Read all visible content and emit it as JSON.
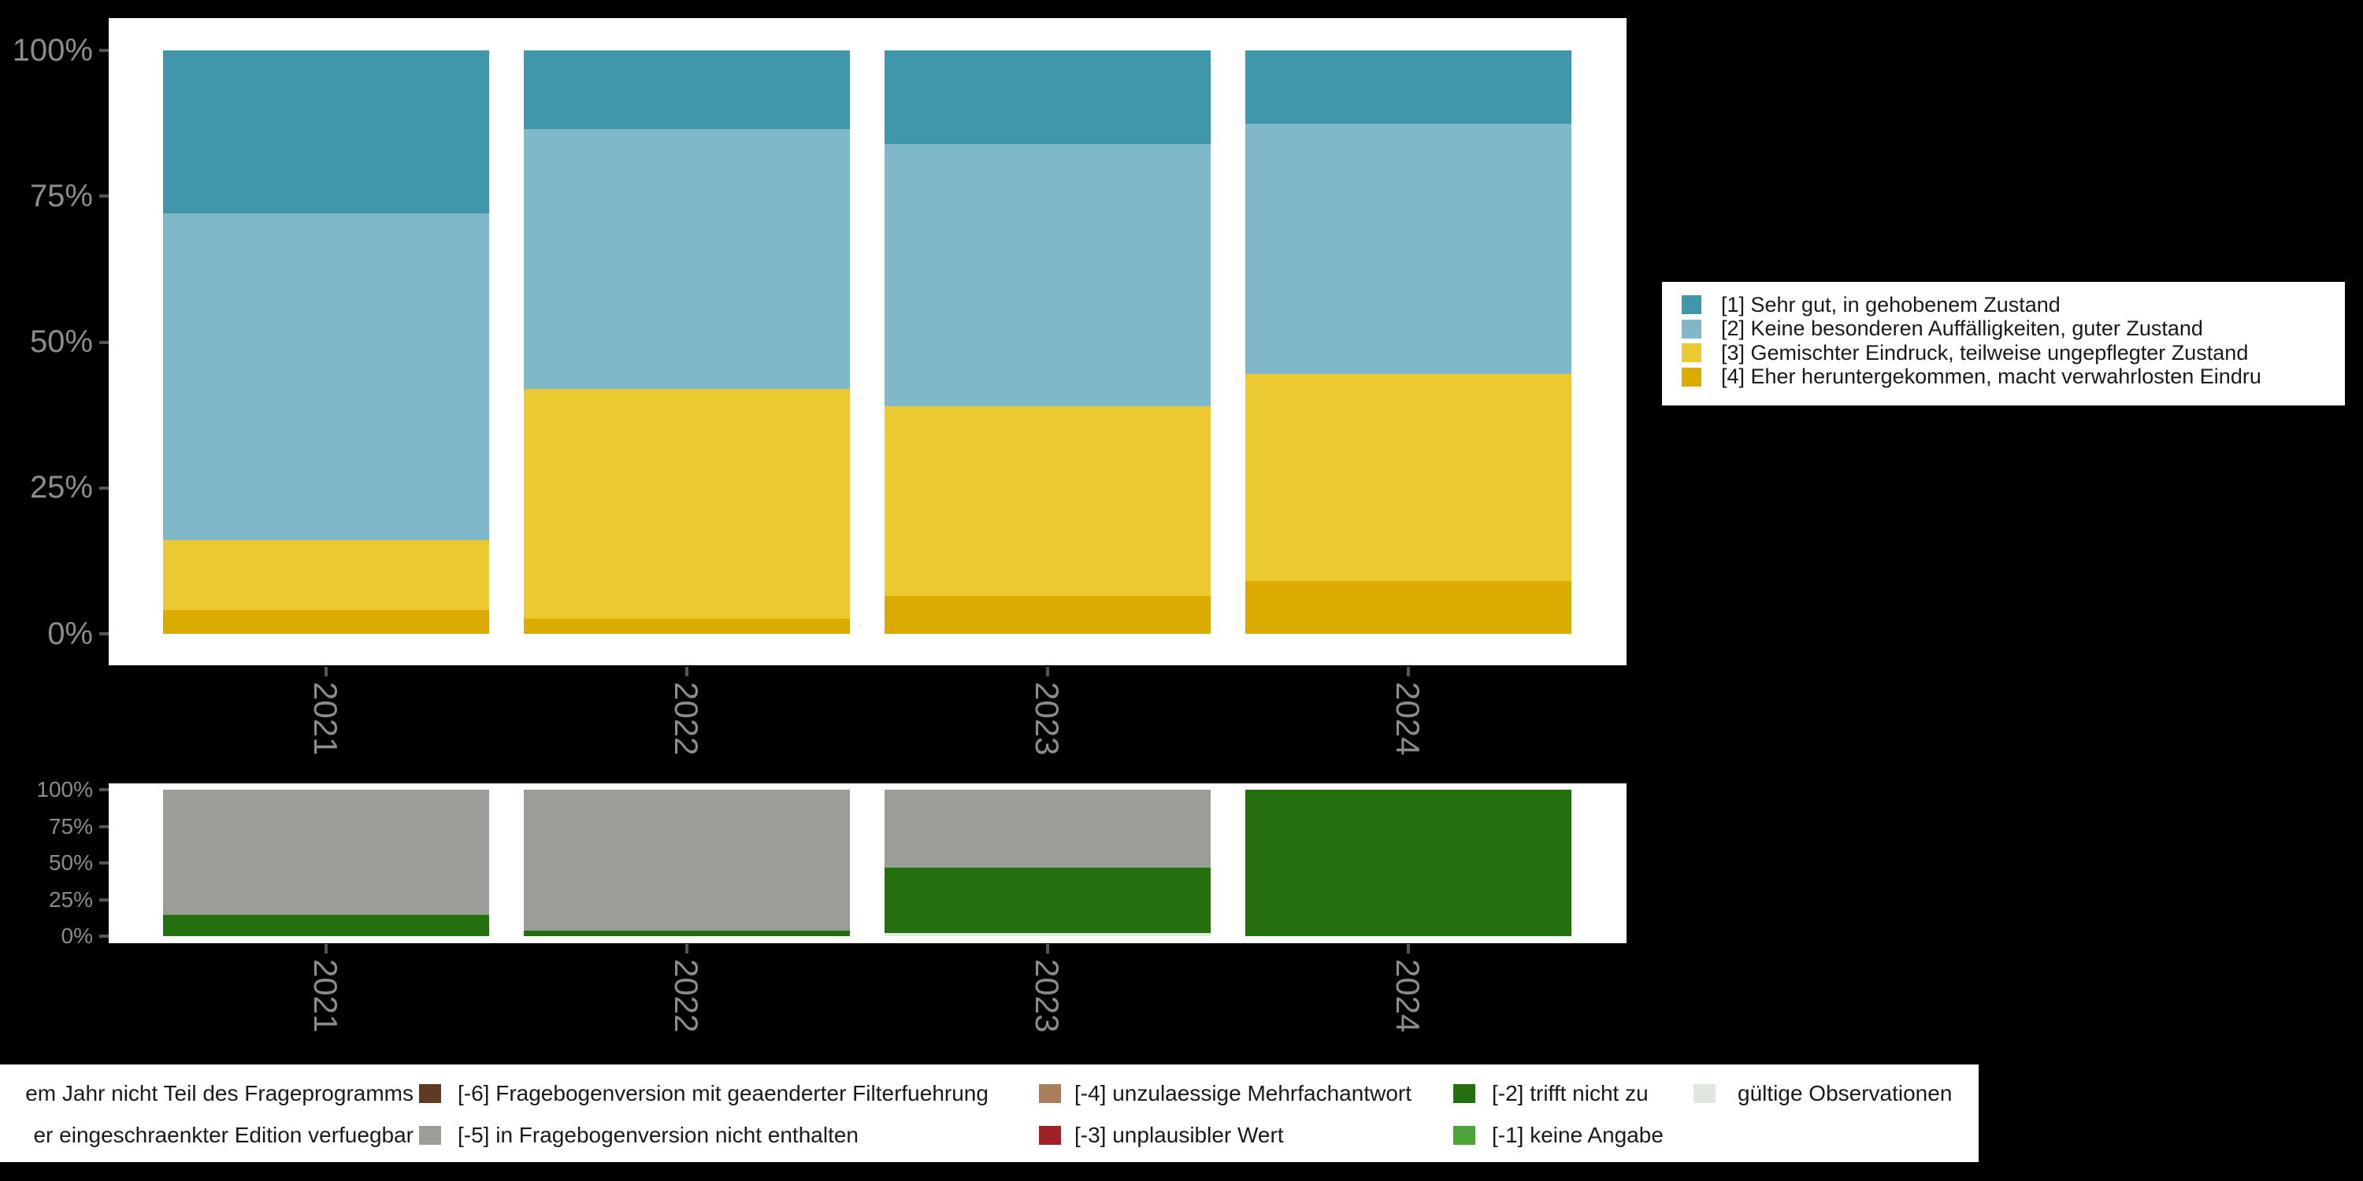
{
  "colors": {
    "background": "#000000",
    "plot_background": "#ffffff",
    "axis_label": "#8c8c8c",
    "tick_mark": "#555555",
    "legend_text": "#1a1a1a",
    "cat1_teal": "#4097ab",
    "cat2_lightblue": "#7fb8c8",
    "cat3_yellow": "#ecc930",
    "cat4_gold": "#dcab00",
    "miss5_gray": "#9a9e97",
    "miss2_darkgreen": "#24700f",
    "miss1_green": "#4aa437",
    "miss3_red": "#9f2227",
    "miss4_tan": "#a87f58",
    "miss6_brown": "#5e3b22",
    "valid_lightgray": "#e2e7de"
  },
  "chart_data": [
    {
      "type": "bar",
      "stacked": true,
      "title": "",
      "categories": [
        "2021",
        "2022",
        "2023",
        "2024"
      ],
      "x_tick_label_rotation": 90,
      "y_ticks": [
        "0%",
        "25%",
        "50%",
        "75%",
        "100%"
      ],
      "y_tick_values": [
        0,
        25,
        50,
        75,
        100
      ],
      "ylim": [
        0,
        100
      ],
      "grid": false,
      "legend_position": "right",
      "series": [
        {
          "name": "[1] Sehr gut, in gehobenem Zustand",
          "color": "#4097ab",
          "values": [
            28,
            13.5,
            16,
            12.5
          ]
        },
        {
          "name": "[2] Keine besonderen Auffälligkeiten, guter Zustand",
          "color": "#7fb8c8",
          "values": [
            56,
            44.5,
            45,
            43
          ]
        },
        {
          "name": "[3] Gemischter Eindruck, teilweise ungepflegter Zustand",
          "color": "#ecc930",
          "values": [
            12,
            39.5,
            32.5,
            35.5
          ]
        },
        {
          "name": "[4] Eher heruntergekommen, macht verwahrlosten Eindru",
          "color": "#dcab00",
          "values": [
            4,
            2.5,
            6.5,
            9
          ]
        }
      ]
    },
    {
      "type": "bar",
      "stacked": true,
      "title": "",
      "categories": [
        "2021",
        "2022",
        "2023",
        "2024"
      ],
      "x_tick_label_rotation": 90,
      "y_ticks": [
        "0%",
        "25%",
        "50%",
        "75%",
        "100%"
      ],
      "y_tick_values": [
        0,
        25,
        50,
        75,
        100
      ],
      "ylim": [
        0,
        100
      ],
      "grid": false,
      "series": [
        {
          "name": "[-5] in Fragebogenversion nicht enthalten",
          "color": "#9a9e97",
          "values": [
            85.5,
            96.5,
            53,
            0
          ]
        },
        {
          "name": "[-2] trifft nicht zu",
          "color": "#24700f",
          "values": [
            14.5,
            3.5,
            45,
            100
          ]
        },
        {
          "name": "gültige Observationen",
          "color": "#e2e7de",
          "values": [
            0,
            0,
            2,
            0
          ]
        }
      ]
    }
  ],
  "legend_top": {
    "items": [
      {
        "label": "[1] Sehr gut, in gehobenem Zustand",
        "color": "#4097ab"
      },
      {
        "label": "[2] Keine besonderen Auffälligkeiten, guter Zustand",
        "color": "#7fb8c8"
      },
      {
        "label": "[3] Gemischter Eindruck, teilweise ungepflegter Zustand",
        "color": "#ecc930"
      },
      {
        "label": "[4] Eher heruntergekommen, macht verwahrlosten Eindru",
        "color": "#dcab00"
      }
    ]
  },
  "legend_bottom": {
    "columns": [
      {
        "items": [
          {
            "label": "em Jahr nicht Teil des Frageprogramms",
            "color": null
          },
          {
            "label": "er eingeschraenkter Edition verfuegbar",
            "color": null
          }
        ]
      },
      {
        "items": [
          {
            "label": "[-6] Fragebogenversion mit geaenderter Filterfuehrung",
            "color": "#5e3b22"
          },
          {
            "label": "[-5] in Fragebogenversion nicht enthalten",
            "color": "#9a9e97"
          }
        ]
      },
      {
        "items": [
          {
            "label": "[-4] unzulaessige Mehrfachantwort",
            "color": "#a87f58"
          },
          {
            "label": "[-3] unplausibler Wert",
            "color": "#9f2227"
          }
        ]
      },
      {
        "items": [
          {
            "label": "[-2] trifft nicht zu",
            "color": "#24700f"
          },
          {
            "label": "[-1] keine Angabe",
            "color": "#4aa437"
          }
        ]
      },
      {
        "items": [
          {
            "label": "gültige Observationen",
            "color": "#e2e7de"
          }
        ]
      }
    ]
  }
}
